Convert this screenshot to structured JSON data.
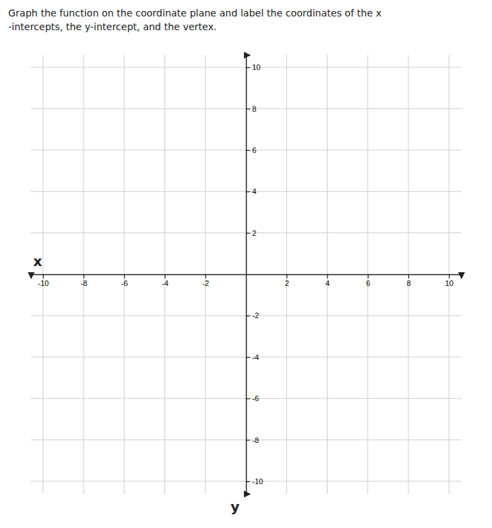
{
  "chart_data": {
    "type": "coordinate_plane",
    "title": "Graph the function on the coordinate plane and label the coordinates of the x",
    "subtitle": "-intercepts, the y-intercept, and the vertex.",
    "x_label": "x",
    "y_label": "y",
    "xlim": [
      -10.6,
      10.6
    ],
    "ylim": [
      -10.6,
      10.6
    ],
    "xticks": [
      -10,
      -8,
      -6,
      -4,
      -2,
      2,
      4,
      6,
      8,
      10
    ],
    "yticks": [
      -10,
      -8,
      -6,
      -4,
      -2,
      2,
      4,
      6,
      8,
      10
    ],
    "grid": true
  }
}
